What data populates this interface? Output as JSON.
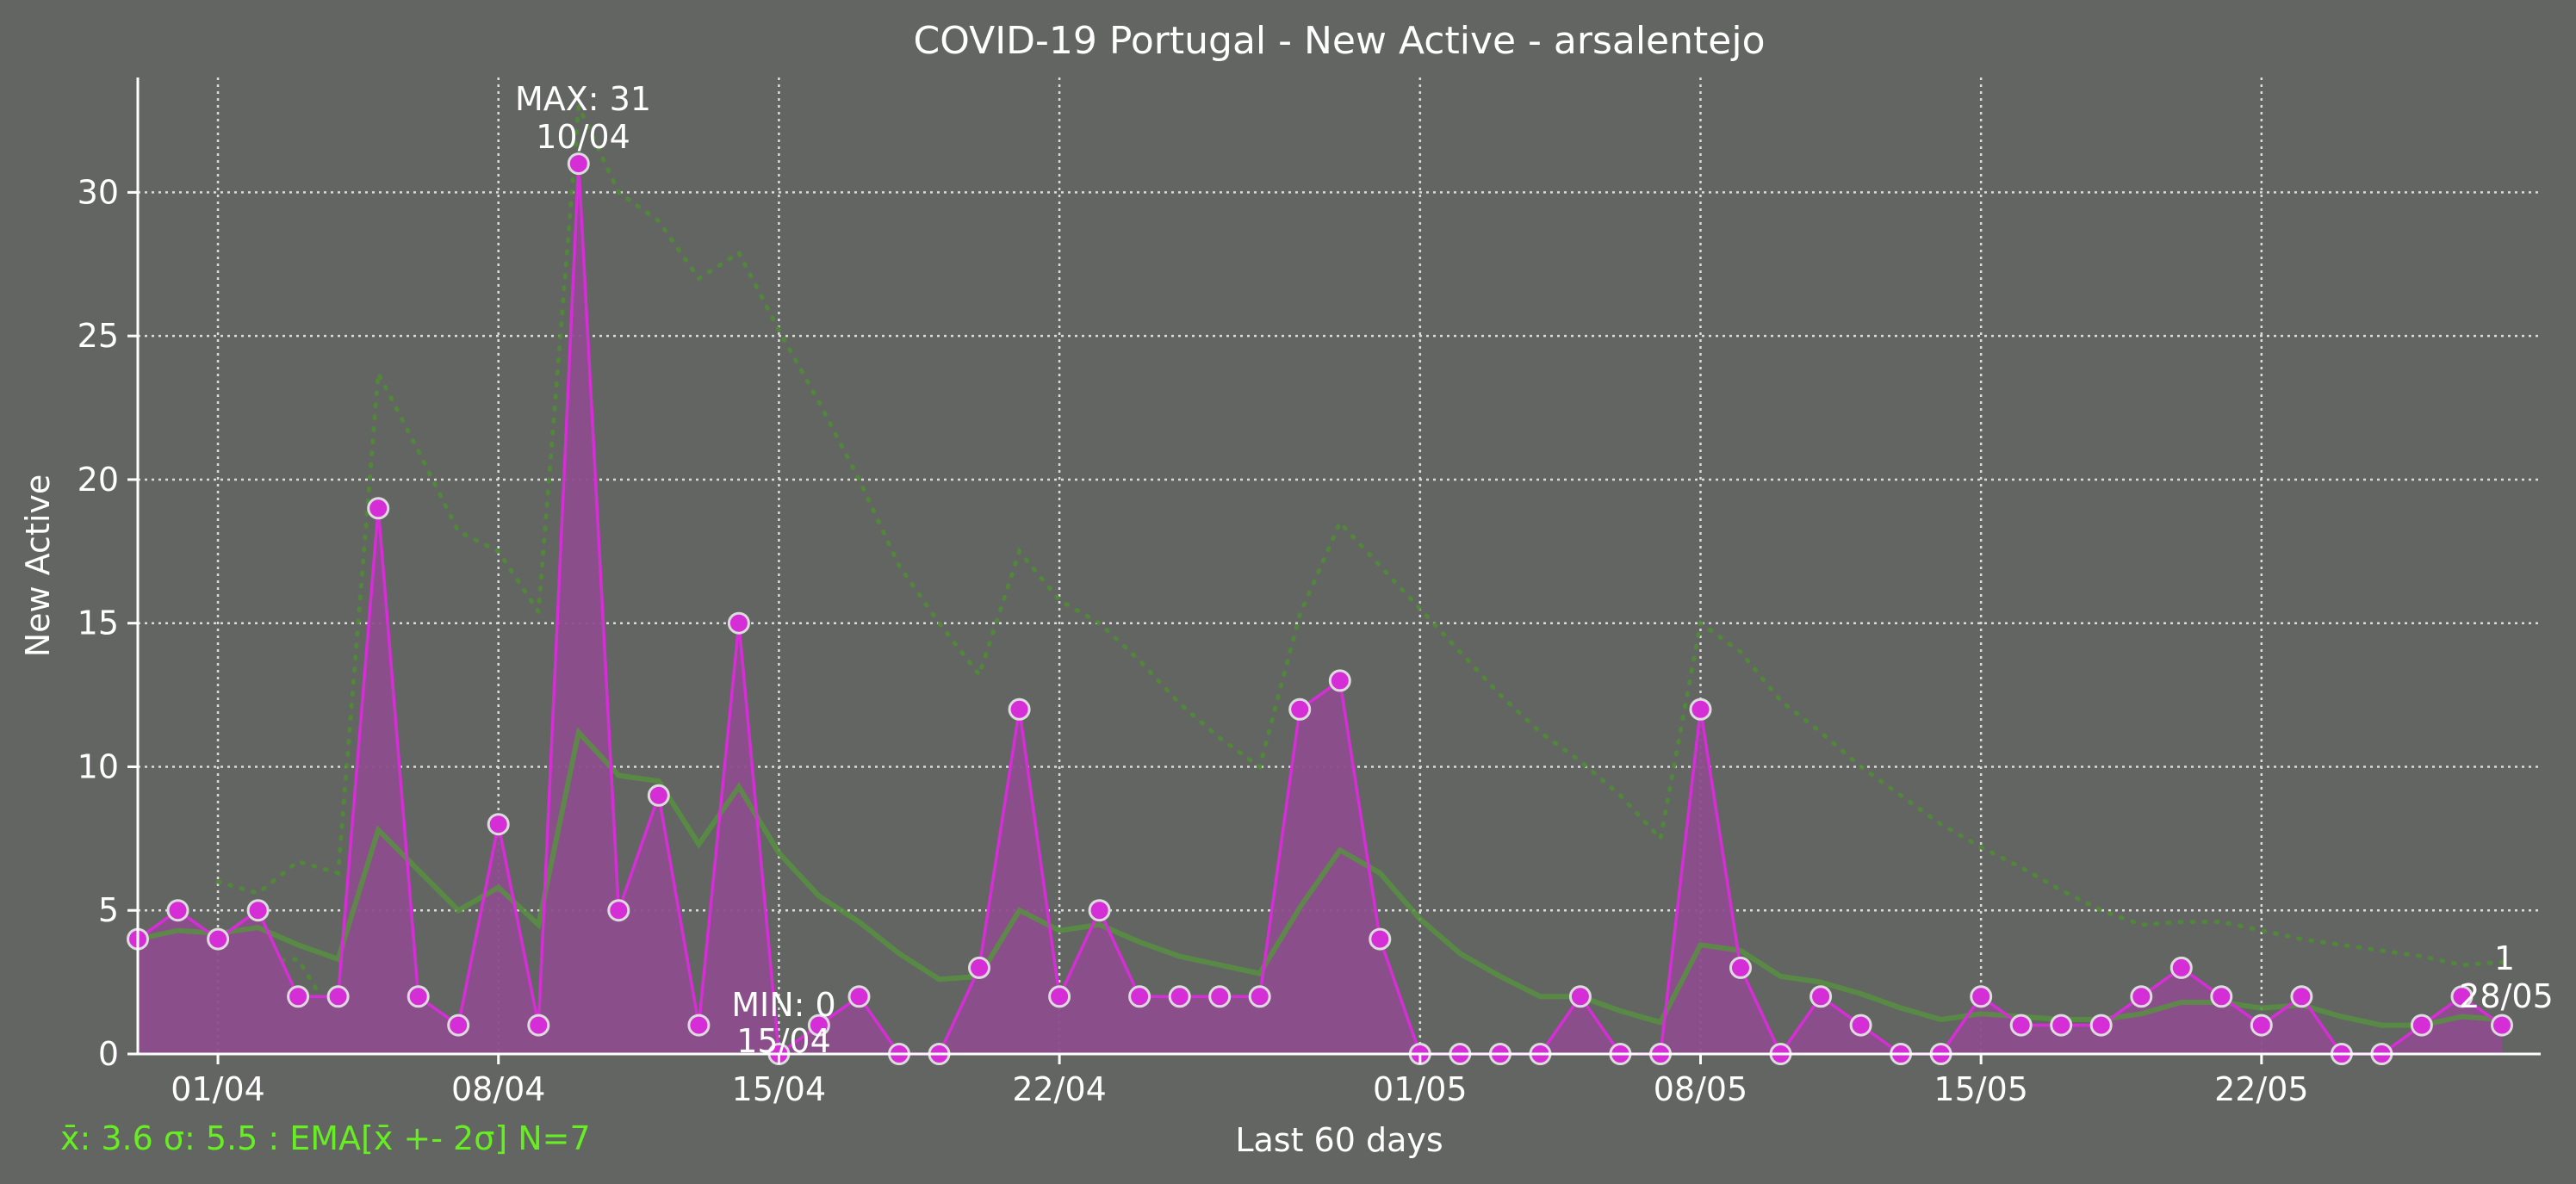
{
  "chart_data": {
    "type": "line",
    "title": "COVID-19 Portugal - New Active - arsalentejo",
    "xlabel": "Last 60 days",
    "ylabel": "New Active",
    "x_start": "2020-03-30",
    "x_end": "2020-05-28",
    "ylim": [
      0,
      34
    ],
    "yticks": [
      0,
      5,
      10,
      15,
      20,
      25,
      30
    ],
    "xticks": [
      {
        "date": "2020-04-01",
        "label": "01/04"
      },
      {
        "date": "2020-04-08",
        "label": "08/04"
      },
      {
        "date": "2020-04-15",
        "label": "15/04"
      },
      {
        "date": "2020-04-22",
        "label": "22/04"
      },
      {
        "date": "2020-05-01",
        "label": "01/05"
      },
      {
        "date": "2020-05-08",
        "label": "08/05"
      },
      {
        "date": "2020-05-15",
        "label": "15/05"
      },
      {
        "date": "2020-05-22",
        "label": "22/05"
      }
    ],
    "grid": true,
    "series": [
      {
        "values": [
          4,
          5,
          4,
          5,
          2,
          2,
          19,
          2,
          1,
          8,
          1,
          31,
          5,
          9,
          1,
          15,
          0,
          1,
          2,
          0,
          0,
          3,
          12,
          2,
          5,
          2,
          2,
          2,
          2,
          12,
          13,
          4,
          0,
          0,
          0,
          0,
          2,
          0,
          0,
          12,
          3,
          0,
          2,
          1,
          0,
          0,
          2,
          1,
          1,
          1,
          2,
          3,
          2,
          1,
          2,
          0,
          0,
          1,
          2,
          1
        ]
      },
      {
        "values": [
          4,
          4.3,
          4.2,
          4.4,
          3.8,
          3.3,
          7.8,
          6.4,
          5.0,
          5.8,
          4.5,
          11.2,
          9.7,
          9.5,
          7.3,
          9.3,
          7.0,
          5.5,
          4.6,
          3.5,
          2.6,
          2.7,
          5.0,
          4.3,
          4.5,
          3.9,
          3.4,
          3.1,
          2.8,
          5.1,
          7.1,
          6.3,
          4.7,
          3.5,
          2.7,
          2.0,
          2.0,
          1.5,
          1.1,
          3.8,
          3.6,
          2.7,
          2.5,
          2.1,
          1.6,
          1.2,
          1.4,
          1.3,
          1.2,
          1.2,
          1.4,
          1.8,
          1.8,
          1.6,
          1.7,
          1.3,
          1.0,
          1.0,
          1.3,
          1.2
        ]
      },
      {
        "values": [
          null,
          null,
          null,
          3.2,
          3.3,
          1.0,
          0.2
        ]
      },
      {
        "values": [
          null,
          null,
          6,
          5.6,
          6.7,
          6.3,
          23.7,
          21,
          18.2,
          17.5,
          15.4,
          33,
          30,
          29,
          27,
          27.9,
          25.2,
          22.7,
          20,
          17,
          15,
          13.2,
          17.5,
          15.8,
          15,
          13.7,
          12.2,
          11,
          10,
          15.3,
          18.5,
          17,
          15.5,
          14,
          12.5,
          11.2,
          10.2,
          9,
          7.5,
          15,
          14,
          12.3,
          11.2,
          10,
          9,
          8,
          7.2,
          6.5,
          5.7,
          5,
          4.5,
          4.6,
          4.6,
          4.3,
          4,
          3.8,
          3.6,
          3.4,
          3.1,
          3.2
        ]
      }
    ],
    "max_annotation": {
      "label": "MAX: 31",
      "date_label": "10/04"
    },
    "min_annotation": {
      "label": "MIN: 0",
      "date_label": "15/04"
    },
    "last_annotation": {
      "label": "1",
      "date_label": "28/05"
    }
  },
  "footer_stats": "x̄: 3.6 σ: 5.5 : EMA[x̄ +- 2σ] N=7",
  "colors": {
    "background": "#636563",
    "text": "#ffffff",
    "data_line": "#d62ed6",
    "data_fill": "#8c4d8c",
    "marker_edge": "#dcdcdc",
    "ema_line": "#57903f",
    "band_line": "#4f8a36",
    "grid": "#dcdcdc",
    "stats_text": "#66ee22"
  }
}
